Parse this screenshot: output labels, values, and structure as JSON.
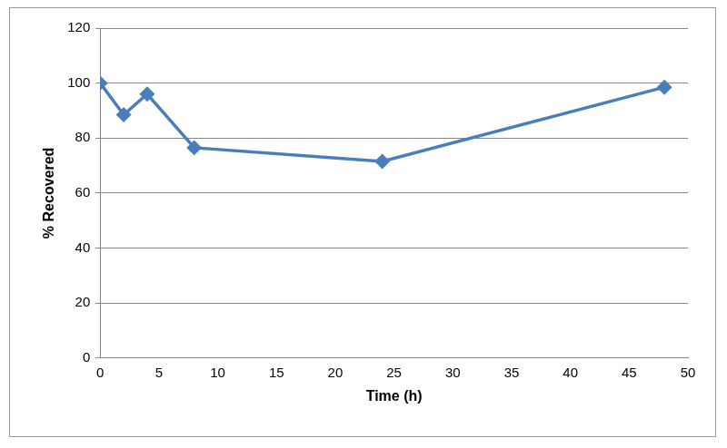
{
  "chart_data": {
    "type": "line",
    "x_label": "Time (h)",
    "y_label": "% Recovered",
    "x": [
      0,
      2,
      4,
      8,
      24,
      48
    ],
    "values": [
      100,
      88.5,
      96,
      76.5,
      71.5,
      98.5
    ],
    "color": "#4a7ebb",
    "marker": "diamond",
    "xlim": [
      0,
      50
    ],
    "xticks": [
      0,
      5,
      10,
      15,
      20,
      25,
      30,
      35,
      40,
      45,
      50
    ],
    "ylim": [
      0,
      120
    ],
    "yticks": [
      0,
      20,
      40,
      60,
      80,
      100,
      120
    ],
    "grid": true
  }
}
